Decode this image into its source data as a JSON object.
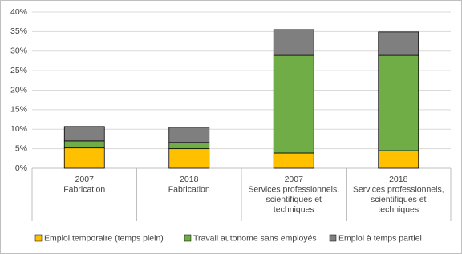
{
  "chart_data": {
    "type": "stacked_bar",
    "categories": [
      [
        "2007",
        "Fabrication"
      ],
      [
        "2018",
        "Fabrication"
      ],
      [
        "2007",
        "Services professionnels,",
        "scientifiques et",
        "techniques"
      ],
      [
        "2018",
        "Services professionnels,",
        "scientifiques et",
        "techniques"
      ]
    ],
    "series": [
      {
        "name": "Emploi temporaire (temps plein)",
        "color": "#ffc000",
        "values": [
          5.2,
          5.0,
          3.9,
          4.5
        ]
      },
      {
        "name": "Travail autonome sans employés",
        "color": "#70ad47",
        "values": [
          1.8,
          1.6,
          25.0,
          24.4
        ]
      },
      {
        "name": "Emploi à temps partiel",
        "color": "#7f7f7f",
        "values": [
          3.7,
          3.9,
          6.6,
          6.0
        ]
      }
    ],
    "ylim": [
      0,
      40
    ],
    "yticks": [
      {
        "value": 0,
        "label": "0%"
      },
      {
        "value": 5,
        "label": "5%"
      },
      {
        "value": 10,
        "label": "10%"
      },
      {
        "value": 15,
        "label": "15%"
      },
      {
        "value": 20,
        "label": "20%"
      },
      {
        "value": 25,
        "label": "25%"
      },
      {
        "value": 30,
        "label": "30%"
      },
      {
        "value": 35,
        "label": "35%"
      },
      {
        "value": 40,
        "label": "40%"
      }
    ],
    "grid": true,
    "legend": "bottom"
  }
}
